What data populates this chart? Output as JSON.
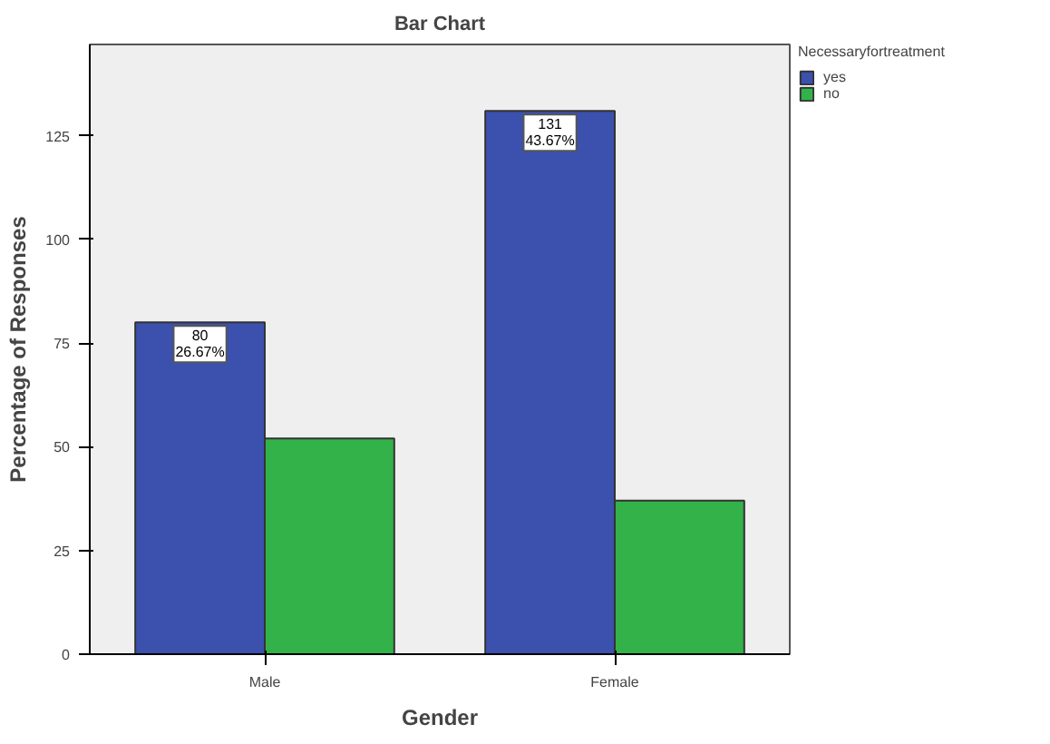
{
  "chart_data": {
    "type": "bar",
    "title": "Bar Chart",
    "xlabel": "Gender",
    "ylabel": "Percentage of Responses",
    "legend_title": "Necessaryfortreatment",
    "categories": [
      "Male",
      "Female"
    ],
    "series": [
      {
        "name": "yes",
        "color": "#3b51ad",
        "values": [
          80,
          131
        ],
        "value_labels": [
          "80\n26.67%",
          "131\n43.67%"
        ]
      },
      {
        "name": "no",
        "color": "#33b24a",
        "values": [
          52,
          37
        ]
      }
    ],
    "ylim": [
      0,
      147
    ],
    "yticks": [
      0,
      25,
      50,
      75,
      100,
      125
    ],
    "grid": false,
    "legend": "top right"
  }
}
